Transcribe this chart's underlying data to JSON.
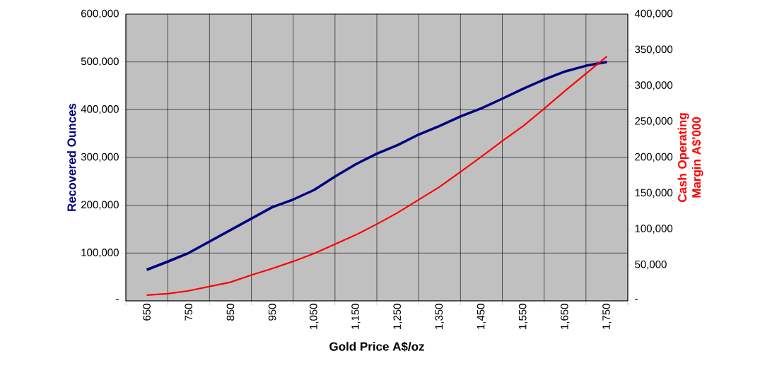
{
  "chart_data": {
    "type": "line",
    "xlabel": "Gold Price A$/oz",
    "ylabel": "Recovered Ounces",
    "y2label": "Cash Operating Margin A$'000",
    "x": [
      650,
      700,
      750,
      800,
      850,
      900,
      950,
      1000,
      1050,
      1100,
      1150,
      1200,
      1250,
      1300,
      1350,
      1400,
      1450,
      1500,
      1550,
      1600,
      1650,
      1700,
      1750
    ],
    "series": [
      {
        "name": null,
        "color": "#000080",
        "values": [
          65000,
          82000,
          100000,
          124000,
          148000,
          172000,
          196000,
          212000,
          232000,
          260000,
          286000,
          308000,
          326000,
          348000,
          366000,
          386000,
          403000,
          423000,
          444000,
          463000,
          480000,
          492000,
          500000
        ]
      },
      {
        "name": null,
        "color": "#ff0000",
        "axis": "y2",
        "values": [
          8000,
          10000,
          14000,
          20000,
          26000,
          36000,
          45000,
          55000,
          66000,
          79000,
          92000,
          107000,
          123000,
          141000,
          159000,
          180000,
          201000,
          223000,
          244000,
          268000,
          293000,
          317000,
          341000
        ]
      }
    ],
    "xlim": [
      600,
      1800
    ],
    "xticks": [
      {
        "value": 600,
        "label": null
      },
      {
        "value": 650,
        "label": "650"
      },
      {
        "value": 700,
        "label": null
      },
      {
        "value": 750,
        "label": "750"
      },
      {
        "value": 800,
        "label": null
      },
      {
        "value": 850,
        "label": "850"
      },
      {
        "value": 900,
        "label": null
      },
      {
        "value": 950,
        "label": "950"
      },
      {
        "value": 1000,
        "label": null
      },
      {
        "value": 1050,
        "label": "1,050"
      },
      {
        "value": 1100,
        "label": null
      },
      {
        "value": 1150,
        "label": "1,150"
      },
      {
        "value": 1200,
        "label": null
      },
      {
        "value": 1250,
        "label": "1,250"
      },
      {
        "value": 1300,
        "label": null
      },
      {
        "value": 1350,
        "label": "1,350"
      },
      {
        "value": 1400,
        "label": null
      },
      {
        "value": 1450,
        "label": "1,450"
      },
      {
        "value": 1500,
        "label": null
      },
      {
        "value": 1550,
        "label": "1,550"
      },
      {
        "value": 1600,
        "label": null
      },
      {
        "value": 1650,
        "label": "1,650"
      },
      {
        "value": 1700,
        "label": null
      },
      {
        "value": 1750,
        "label": "1,750"
      },
      {
        "value": 1800,
        "label": null
      }
    ],
    "ylim": [
      0,
      600000
    ],
    "yticks": [
      {
        "value": 0,
        "label": "-"
      },
      {
        "value": 100000,
        "label": "100,000"
      },
      {
        "value": 200000,
        "label": "200,000"
      },
      {
        "value": 300000,
        "label": "300,000"
      },
      {
        "value": 400000,
        "label": "400,000"
      },
      {
        "value": 500000,
        "label": "500,000"
      },
      {
        "value": 600000,
        "label": "600,000"
      }
    ],
    "y2lim": [
      0,
      400000
    ],
    "y2ticks": [
      {
        "value": 0,
        "label": "-"
      },
      {
        "value": 50000,
        "label": "50,000"
      },
      {
        "value": 100000,
        "label": "100,000"
      },
      {
        "value": 150000,
        "label": "150,000"
      },
      {
        "value": 200000,
        "label": "200,000"
      },
      {
        "value": 250000,
        "label": "250,000"
      },
      {
        "value": 300000,
        "label": "300,000"
      },
      {
        "value": 350000,
        "label": "350,000"
      },
      {
        "value": 400000,
        "label": "400,000"
      }
    ],
    "grid": true,
    "marker": "none",
    "line_style": "solid"
  }
}
